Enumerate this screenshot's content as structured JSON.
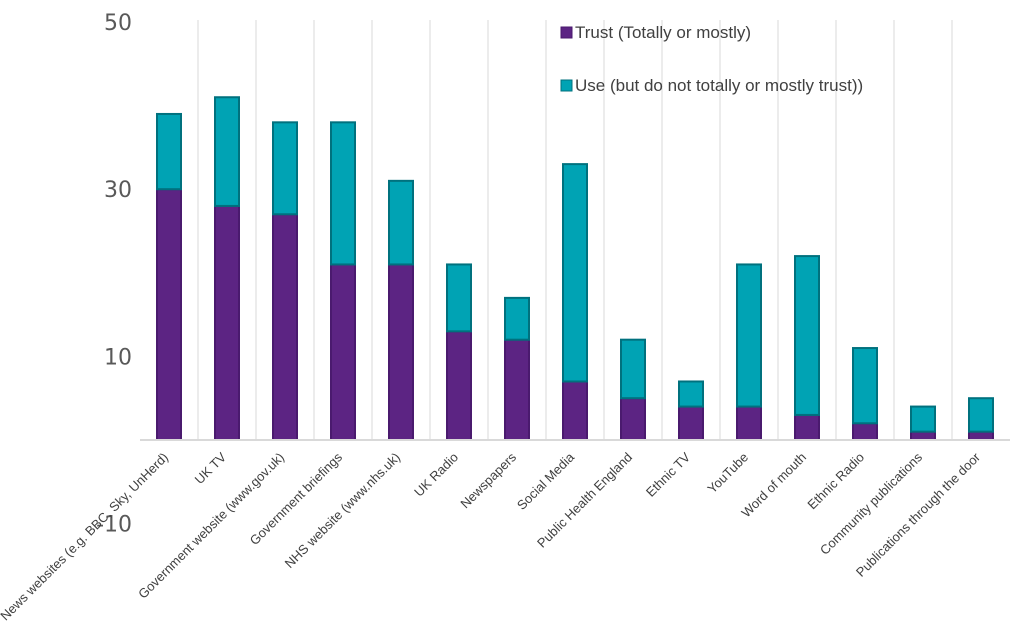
{
  "chart_data": {
    "type": "bar",
    "stacked": true,
    "categories": [
      "News websites (e.g. BBC, Sky, UnHerd)",
      "UK TV",
      "Government website (www.gov.uk)",
      "Government briefings",
      "NHS website (www.nhs.uk)",
      "UK Radio",
      "Newspapers",
      "Social Media",
      "Public Health England",
      "Ethnic TV",
      "YouTube",
      "Word of mouth",
      "Ethnic Radio",
      "Community publications",
      "Publications through the door"
    ],
    "series": [
      {
        "name": "Trust (Totally or mostly)",
        "color": "#5c2483",
        "values": [
          30,
          28,
          27,
          21,
          21,
          13,
          12,
          7,
          5,
          4,
          4,
          3,
          2,
          1,
          1
        ]
      },
      {
        "name": "Use  (but do not totally or mostly trust))",
        "color": "#00a3b4",
        "values": [
          9,
          13,
          11,
          17,
          10,
          8,
          5,
          26,
          7,
          3,
          17,
          19,
          9,
          3,
          4
        ]
      }
    ],
    "yticks": [
      "-10",
      "10",
      "30",
      "50"
    ],
    "ylim": [
      -10,
      50
    ],
    "grid": "vertical",
    "legend_position": "top-right"
  }
}
